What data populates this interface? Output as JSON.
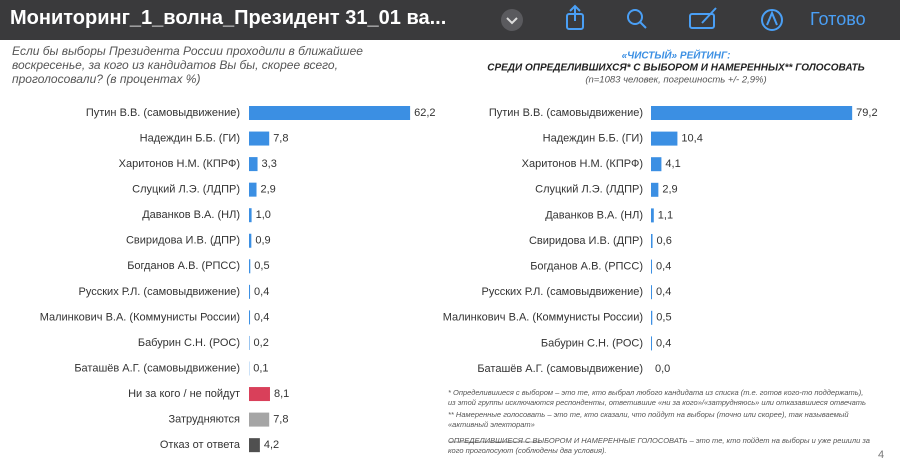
{
  "app_bar": {
    "title": "Мониторинг_1_волна_Президент 31_01 ва...",
    "done": "Готово"
  },
  "chart_data": [
    {
      "type": "bar",
      "orientation": "horizontal",
      "title": "Если бы выборы Президента России проходили в ближайшее воскресенье, за кого из кандидатов Вы бы, скорее всего, проголосовали? (в процентах %)",
      "categories": [
        "Путин В.В. (самовыдвижение)",
        "Надеждин Б.Б. (ГИ)",
        "Харитонов Н.М. (КПРФ)",
        "Слуцкий Л.Э. (ЛДПР)",
        "Даванков В.А. (НЛ)",
        "Свиридова И.В. (ДПР)",
        "Богданов А.В. (РПСС)",
        "Русских Р.Л. (самовыдвижение)",
        "Малинкович В.А. (Коммунисты России)",
        "Бабурин С.Н. (РОС)",
        "Баташёв А.Г. (самовыдвижение)",
        "Ни за кого / не пойдут",
        "Затрудняются",
        "Отказ от ответа"
      ],
      "values": [
        62.2,
        7.8,
        3.3,
        2.9,
        1.0,
        0.9,
        0.5,
        0.4,
        0.4,
        0.2,
        0.1,
        8.1,
        7.8,
        4.2
      ],
      "value_labels": [
        "62,2",
        "7,8",
        "3,3",
        "2,9",
        "1,0",
        "0,9",
        "0,5",
        "0,4",
        "0,4",
        "0,2",
        "0,1",
        "8,1",
        "7,8",
        "4,2"
      ],
      "colors": [
        "#3b8fe3",
        "#3b8fe3",
        "#3b8fe3",
        "#3b8fe3",
        "#3b8fe3",
        "#3b8fe3",
        "#3b8fe3",
        "#3b8fe3",
        "#3b8fe3",
        "#3b8fe3",
        "#3b8fe3",
        "#d9405a",
        "#a5a5a5",
        "#505050"
      ]
    },
    {
      "type": "bar",
      "orientation": "horizontal",
      "title": "«ЧИСТЫЙ» РЕЙТИНГ:",
      "subtitle": "СРЕДИ ОПРЕДЕЛИВШИХСЯ* С ВЫБОРОМ И НАМЕРЕННЫХ** ГОЛОСОВАТЬ",
      "note": "(n=1083 человек, погрешность +/- 2,9%)",
      "categories": [
        "Путин В.В. (самовыдвижение)",
        "Надеждин Б.Б. (ГИ)",
        "Харитонов Н.М. (КПРФ)",
        "Слуцкий Л.Э. (ЛДПР)",
        "Даванков В.А. (НЛ)",
        "Свиридова И.В. (ДПР)",
        "Богданов А.В. (РПСС)",
        "Русских Р.Л. (самовыдвижение)",
        "Малинкович В.А. (Коммунисты России)",
        "Бабурин С.Н. (РОС)",
        "Баташёв А.Г. (самовыдвижение)"
      ],
      "values": [
        79.2,
        10.4,
        4.1,
        2.9,
        1.1,
        0.6,
        0.4,
        0.4,
        0.5,
        0.4,
        0.0
      ],
      "value_labels": [
        "79,2",
        "10,4",
        "4,1",
        "2,9",
        "1,1",
        "0,6",
        "0,4",
        "0,4",
        "0,5",
        "0,4",
        "0,0"
      ],
      "color": "#3b8fe3"
    }
  ],
  "footnotes": [
    "* Определившиеся с выбором – это те, кто выбрал любого кандидата из списка (т.е. готов кого-то поддержать), из этой группы исключаются респонденты, ответившие «ни за кого»/«затрудняюсь» или отказавшиеся отвечать",
    "** Намеренные голосовать – это те, кто сказали, что пойдут на выборы (точно или скорее), так называемый «активный электорат»",
    "ОПРЕДЕЛИВШИЕСЯ С ВЫБОРОМ И НАМЕРЕННЫЕ ГОЛОСОВАТЬ – это те, кто пойдет на выборы и уже решили за кого проголосуют (соблюдены два условия)."
  ],
  "page_number": "4"
}
